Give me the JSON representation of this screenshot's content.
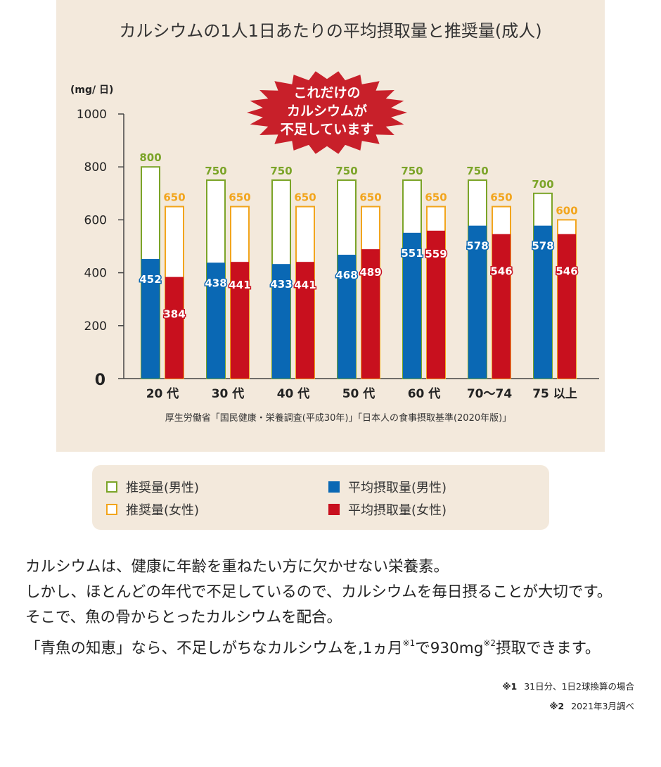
{
  "chart_data": {
    "type": "bar",
    "title": "カルシウムの1人1日あたりの平均摂取量と推奨量(成人)",
    "ylabel": "(mg/ 日)",
    "ylim": [
      0,
      1000
    ],
    "yticks": [
      0,
      200,
      400,
      600,
      800,
      1000
    ],
    "categories": [
      "20 代",
      "30 代",
      "40 代",
      "50 代",
      "60 代",
      "70〜74",
      "75 以上"
    ],
    "series": [
      {
        "name": "推奨量(男性)",
        "values": [
          800,
          750,
          750,
          750,
          750,
          750,
          700
        ]
      },
      {
        "name": "推奨量(女性)",
        "values": [
          650,
          650,
          650,
          650,
          650,
          650,
          600
        ]
      },
      {
        "name": "平均摂取量(男性)",
        "values": [
          452,
          438,
          433,
          468,
          551,
          578,
          578
        ]
      },
      {
        "name": "平均摂取量(女性)",
        "values": [
          384,
          441,
          441,
          489,
          559,
          546,
          546
        ]
      }
    ],
    "callout": [
      "これだけの",
      "カルシウムが",
      "不足しています"
    ],
    "source": "厚生労働省「国民健康・栄養調査(平成30年)」「日本人の食事摂取基準(2020年版)」"
  },
  "colors": {
    "panel_bg": "#f3e9dc",
    "rec_male": "#7ba428",
    "rec_female": "#f2a51d",
    "avg_male": "#0a68b4",
    "avg_female": "#c8101e",
    "burst": "#c8202a"
  },
  "legend": [
    {
      "label": "推奨量(男性)"
    },
    {
      "label": "推奨量(女性)"
    },
    {
      "label": "平均摂取量(男性)"
    },
    {
      "label": "平均摂取量(女性)"
    }
  ],
  "body": {
    "line1": "カルシウムは、健康に年齢を重ねたい方に欠かせない栄養素。",
    "line2": "しかし、ほとんどの年代で不足しているので、カルシウムを毎日摂ることが大切です。",
    "line3": "そこで、魚の骨からとったカルシウムを配合。",
    "line4_a": "「青魚の知恵」なら、不足しがちなカルシウムを,1ヵ月",
    "line4_sup1": "※1",
    "line4_b": "で930mg",
    "line4_sup2": "※2",
    "line4_c": "摂取できます。"
  },
  "notes": {
    "note1_mark": "※1",
    "note1_text": "31日分、1日2球換算の場合",
    "note2_mark": "※2",
    "note2_text": "2021年3月調べ"
  }
}
